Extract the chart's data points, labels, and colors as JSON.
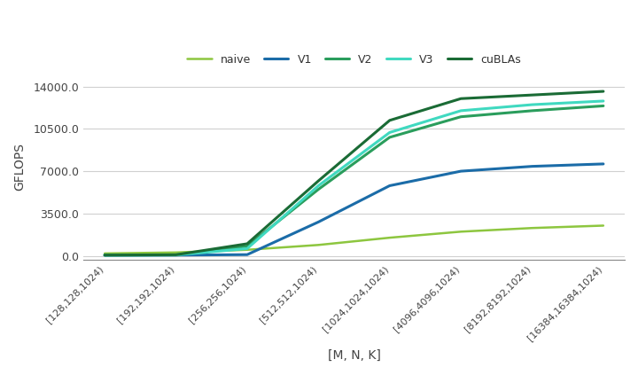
{
  "x_labels": [
    "[128,128,1024)",
    "[192,192,1024)",
    "[256,256,1024)",
    "[512,512,1024)",
    "[1024,1024,1024)",
    "[4096,4096,1024)",
    "[8192,8192,1024)",
    "[16384,16384,1024)"
  ],
  "series": {
    "naive": [
      200,
      280,
      500,
      900,
      1500,
      2000,
      2300,
      2500
    ],
    "V1": [
      50,
      60,
      100,
      2800,
      5800,
      7000,
      7400,
      7600
    ],
    "V2": [
      60,
      80,
      800,
      5500,
      9800,
      11500,
      12000,
      12400
    ],
    "V3": [
      55,
      70,
      600,
      5800,
      10200,
      12000,
      12500,
      12800
    ],
    "cuBLAs": [
      65,
      90,
      1000,
      6200,
      11200,
      13000,
      13300,
      13600
    ]
  },
  "colors": {
    "naive": "#8dc63f",
    "V1": "#1b6ca8",
    "V2": "#2a9d5c",
    "V3": "#40d9c0",
    "cuBLAs": "#1a6b35"
  },
  "linewidths": {
    "naive": 1.8,
    "V1": 2.2,
    "V2": 2.2,
    "V3": 2.2,
    "cuBLAs": 2.2
  },
  "ylabel": "GFLOPS",
  "xlabel": "[M, N, K]",
  "yticks": [
    0.0,
    3500.0,
    7000.0,
    10500.0,
    14000.0
  ],
  "ylim": [
    -300,
    15000
  ],
  "background_color": "#ffffff",
  "grid_color": "#d0d0d0",
  "legend_order": [
    "naive",
    "V1",
    "V2",
    "V3",
    "cuBLAs"
  ]
}
